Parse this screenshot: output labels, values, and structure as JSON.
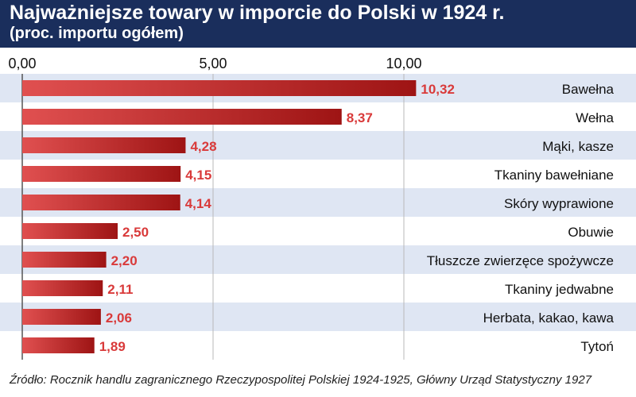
{
  "header": {
    "title": "Najważniejsze towary w imporcie do Polski w 1924 r.",
    "subtitle": "(proc. importu ogółem)"
  },
  "source": "Źródło: Rocznik handlu zagranicznego Rzeczypospolitej Polskiej 1924-1925, Główny Urząd Statystyczny 1927",
  "colors": {
    "header_bg": "#1a2e5c",
    "bar_dark": "#9e1414",
    "bar_light": "#e05050",
    "stripe": "#dfe6f3",
    "value_label": "#d93a3a"
  },
  "chart_data": {
    "type": "bar",
    "orientation": "horizontal",
    "title": "Najważniejsze towary w imporcie do Polski w 1924 r.",
    "subtitle": "(proc. importu ogółem)",
    "xlim": [
      0,
      10
    ],
    "xticks": [
      "0,00",
      "5,00",
      "10,00"
    ],
    "grid": true,
    "categories": [
      "Bawełna",
      "Wełna",
      "Mąki, kasze",
      "Tkaniny bawełniane",
      "Skóry wyprawione",
      "Obuwie",
      "Tłuszcze zwierzęce spożywcze",
      "Tkaniny jedwabne",
      "Herbata, kakao, kawa",
      "Tytoń"
    ],
    "values": [
      10.32,
      8.37,
      4.28,
      4.15,
      4.14,
      2.5,
      2.2,
      2.11,
      2.06,
      1.89
    ],
    "value_labels": [
      "10,32",
      "8,37",
      "4,28",
      "4,15",
      "4,14",
      "2,50",
      "2,20",
      "2,11",
      "2,06",
      "1,89"
    ]
  }
}
